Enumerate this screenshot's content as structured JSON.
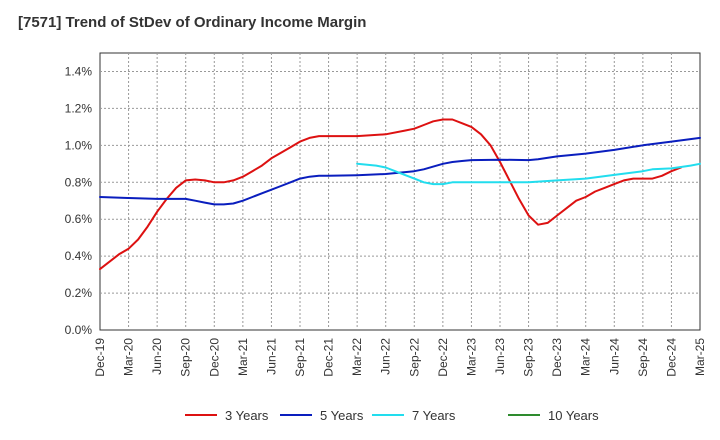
{
  "chart_data": {
    "type": "line",
    "title": "[7571]  Trend of StDev of Ordinary Income Margin",
    "xlabel": "",
    "ylabel": "",
    "ylim": [
      0,
      1.5
    ],
    "grid": true,
    "legend_position": "bottom",
    "x_ticks": [
      "Dec-19",
      "Mar-20",
      "Jun-20",
      "Sep-20",
      "Dec-20",
      "Mar-21",
      "Jun-21",
      "Sep-21",
      "Dec-21",
      "Mar-22",
      "Jun-22",
      "Sep-22",
      "Dec-22",
      "Mar-23",
      "Jun-23",
      "Sep-23",
      "Dec-23",
      "Mar-24",
      "Jun-24",
      "Sep-24",
      "Dec-24",
      "Mar-25"
    ],
    "y_ticks": [
      {
        "value": 0.0,
        "label": "0.0%"
      },
      {
        "value": 0.2,
        "label": "0.2%"
      },
      {
        "value": 0.4,
        "label": "0.4%"
      },
      {
        "value": 0.6,
        "label": "0.6%"
      },
      {
        "value": 0.8,
        "label": "0.8%"
      },
      {
        "value": 1.0,
        "label": "1.0%"
      },
      {
        "value": 1.2,
        "label": "1.2%"
      },
      {
        "value": 1.4,
        "label": "1.4%"
      }
    ],
    "series": [
      {
        "name": "3 Years",
        "color": "#dd1111",
        "points": [
          [
            "Dec-19",
            0.33
          ],
          [
            "Jan-20",
            0.37
          ],
          [
            "Feb-20",
            0.41
          ],
          [
            "Mar-20",
            0.44
          ],
          [
            "Apr-20",
            0.49
          ],
          [
            "May-20",
            0.56
          ],
          [
            "Jun-20",
            0.64
          ],
          [
            "Jul-20",
            0.71
          ],
          [
            "Aug-20",
            0.77
          ],
          [
            "Sep-20",
            0.81
          ],
          [
            "Oct-20",
            0.815
          ],
          [
            "Nov-20",
            0.81
          ],
          [
            "Dec-20",
            0.8
          ],
          [
            "Jan-21",
            0.8
          ],
          [
            "Feb-21",
            0.81
          ],
          [
            "Mar-21",
            0.83
          ],
          [
            "Apr-21",
            0.86
          ],
          [
            "May-21",
            0.89
          ],
          [
            "Jun-21",
            0.93
          ],
          [
            "Jul-21",
            0.96
          ],
          [
            "Aug-21",
            0.99
          ],
          [
            "Sep-21",
            1.02
          ],
          [
            "Oct-21",
            1.04
          ],
          [
            "Nov-21",
            1.05
          ],
          [
            "Dec-21",
            1.05
          ],
          [
            "Mar-22",
            1.05
          ],
          [
            "Jun-22",
            1.06
          ],
          [
            "Aug-22",
            1.08
          ],
          [
            "Sep-22",
            1.09
          ],
          [
            "Oct-22",
            1.11
          ],
          [
            "Nov-22",
            1.13
          ],
          [
            "Dec-22",
            1.14
          ],
          [
            "Jan-23",
            1.14
          ],
          [
            "Feb-23",
            1.12
          ],
          [
            "Mar-23",
            1.1
          ],
          [
            "Apr-23",
            1.06
          ],
          [
            "May-23",
            1.0
          ],
          [
            "Jun-23",
            0.91
          ],
          [
            "Jul-23",
            0.81
          ],
          [
            "Aug-23",
            0.71
          ],
          [
            "Sep-23",
            0.62
          ],
          [
            "Oct-23",
            0.57
          ],
          [
            "Nov-23",
            0.58
          ],
          [
            "Dec-23",
            0.62
          ],
          [
            "Jan-24",
            0.66
          ],
          [
            "Feb-24",
            0.7
          ],
          [
            "Mar-24",
            0.72
          ],
          [
            "Apr-24",
            0.75
          ],
          [
            "May-24",
            0.77
          ],
          [
            "Jun-24",
            0.79
          ],
          [
            "Jul-24",
            0.81
          ],
          [
            "Aug-24",
            0.82
          ],
          [
            "Sep-24",
            0.82
          ],
          [
            "Oct-24",
            0.82
          ],
          [
            "Nov-24",
            0.835
          ],
          [
            "Dec-24",
            0.86
          ],
          [
            "Jan-25",
            0.88
          ]
        ]
      },
      {
        "name": "5 Years",
        "color": "#0a1ebe",
        "points": [
          [
            "Dec-19",
            0.72
          ],
          [
            "Mar-20",
            0.715
          ],
          [
            "Jun-20",
            0.71
          ],
          [
            "Sep-20",
            0.71
          ],
          [
            "Oct-20",
            0.7
          ],
          [
            "Nov-20",
            0.69
          ],
          [
            "Dec-20",
            0.68
          ],
          [
            "Jan-21",
            0.68
          ],
          [
            "Feb-21",
            0.685
          ],
          [
            "Mar-21",
            0.7
          ],
          [
            "Apr-21",
            0.72
          ],
          [
            "May-21",
            0.74
          ],
          [
            "Jun-21",
            0.76
          ],
          [
            "Jul-21",
            0.78
          ],
          [
            "Aug-21",
            0.8
          ],
          [
            "Sep-21",
            0.82
          ],
          [
            "Oct-21",
            0.83
          ],
          [
            "Nov-21",
            0.835
          ],
          [
            "Dec-21",
            0.835
          ],
          [
            "Mar-22",
            0.838
          ],
          [
            "Jun-22",
            0.845
          ],
          [
            "Sep-22",
            0.86
          ],
          [
            "Oct-22",
            0.87
          ],
          [
            "Nov-22",
            0.885
          ],
          [
            "Dec-22",
            0.9
          ],
          [
            "Jan-23",
            0.91
          ],
          [
            "Feb-23",
            0.915
          ],
          [
            "Mar-23",
            0.92
          ],
          [
            "Jun-23",
            0.922
          ],
          [
            "Sep-23",
            0.92
          ],
          [
            "Oct-23",
            0.925
          ],
          [
            "Dec-23",
            0.94
          ],
          [
            "Mar-24",
            0.955
          ],
          [
            "Jun-24",
            0.975
          ],
          [
            "Sep-24",
            1.0
          ],
          [
            "Dec-24",
            1.02
          ],
          [
            "Mar-25",
            1.04
          ]
        ]
      },
      {
        "name": "7 Years",
        "color": "#22ddee",
        "points": [
          [
            "Mar-22",
            0.9
          ],
          [
            "May-22",
            0.89
          ],
          [
            "Jun-22",
            0.88
          ],
          [
            "Jul-22",
            0.86
          ],
          [
            "Aug-22",
            0.84
          ],
          [
            "Sep-22",
            0.82
          ],
          [
            "Oct-22",
            0.8
          ],
          [
            "Nov-22",
            0.79
          ],
          [
            "Dec-22",
            0.79
          ],
          [
            "Jan-23",
            0.8
          ],
          [
            "Mar-23",
            0.8
          ],
          [
            "Jun-23",
            0.8
          ],
          [
            "Sep-23",
            0.8
          ],
          [
            "Dec-23",
            0.81
          ],
          [
            "Mar-24",
            0.82
          ],
          [
            "Jun-24",
            0.84
          ],
          [
            "Sep-24",
            0.86
          ],
          [
            "Oct-24",
            0.87
          ],
          [
            "Dec-24",
            0.875
          ],
          [
            "Feb-25",
            0.89
          ],
          [
            "Mar-25",
            0.9
          ]
        ]
      },
      {
        "name": "10 Years",
        "color": "#2e8b2e",
        "points": []
      }
    ]
  }
}
